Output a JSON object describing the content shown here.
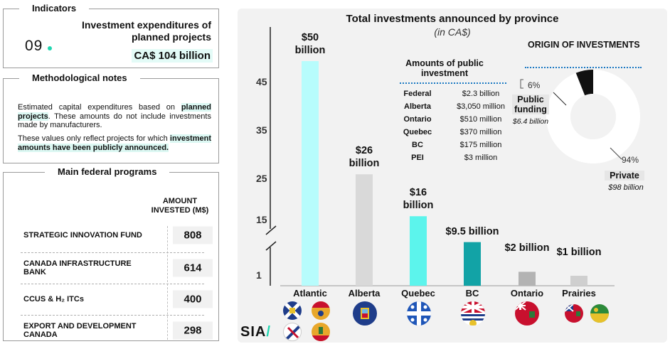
{
  "indicators": {
    "panel_title": "Indicators",
    "number": "09",
    "title": "Investment expenditures of planned projects",
    "value": "CA$ 104 billion"
  },
  "methodology": {
    "panel_title": "Methodological notes",
    "p1_a": "Estimated capital expenditures based on ",
    "p1_hl": "planned projects",
    "p1_b": ". These amounts do not include investments made by manufacturers.",
    "p2_a": "These values only reflect projects for which ",
    "p2_hl": "investment amounts have been publicly announced."
  },
  "programs": {
    "panel_title": "Main federal programs",
    "header": "AMOUNT INVESTED (M$)",
    "rows": [
      {
        "name": "STRATEGIC INNOVATION FUND",
        "value": "808"
      },
      {
        "name": "CANADA INFRASTRUCTURE BANK",
        "value": "614"
      },
      {
        "name": "CCUS & H₂ ITCs",
        "value": "400"
      },
      {
        "name": "EXPORT AND DEVELOPMENT CANADA",
        "value": "298"
      }
    ]
  },
  "chart_data": {
    "type": "bar",
    "title": "Total investments announced by province",
    "subtitle": "(in CA$)",
    "categories": [
      "Atlantic",
      "Alberta",
      "Quebec",
      "BC",
      "Ontario",
      "Prairies"
    ],
    "values": [
      50,
      26,
      16,
      9.5,
      2,
      1
    ],
    "unit": "billion",
    "data_labels": [
      "$50 billion",
      "$26 billion",
      "$16 billion",
      "$9.5 billion",
      "$2 billion",
      "$1 billion"
    ],
    "yticks": [
      1,
      15,
      25,
      35,
      45
    ],
    "axis_break": true,
    "ylim": [
      0,
      50
    ],
    "colors": [
      "#b7fcfc",
      "#d9d9d9",
      "#5cf4ec",
      "#12a3a6",
      "#b3b3b3",
      "#cfcfcf"
    ]
  },
  "public_investment": {
    "title": "Amounts of public investment",
    "rows": [
      {
        "name": "Federal",
        "value": "$2.3 billion"
      },
      {
        "name": "Alberta",
        "value": "$3,050 million"
      },
      {
        "name": "Ontario",
        "value": "$510 million"
      },
      {
        "name": "Quebec",
        "value": "$370 million"
      },
      {
        "name": "BC",
        "value": "$175 million"
      },
      {
        "name": "PEI",
        "value": "$3 million"
      }
    ]
  },
  "origin": {
    "title": "ORIGIN OF INVESTMENTS",
    "public_pct": "6%",
    "public_label": "Public funding",
    "public_amount": "$6.4 billion",
    "private_pct": "94%",
    "private_label": "Private",
    "private_amount": "$98 billion",
    "public_share": 6,
    "private_share": 94
  },
  "logo": {
    "text_a": "SIA",
    "text_b": "/"
  }
}
